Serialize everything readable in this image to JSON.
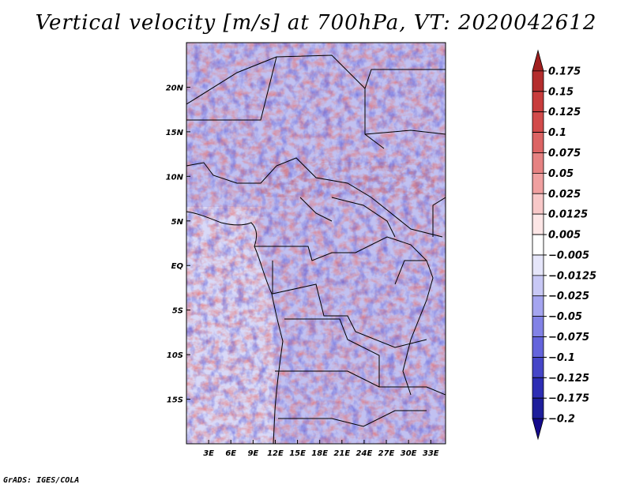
{
  "title": "Vertical velocity [m/s] at 700hPa, VT: 2020042612",
  "credit": "GrADS: IGES/COLA",
  "chart_data": {
    "type": "heatmap",
    "variable": "Vertical velocity",
    "units": "m/s",
    "level": "700hPa",
    "valid_time": "2020042612",
    "xlim": [
      0,
      35
    ],
    "ylim": [
      -20,
      25
    ],
    "x_ticks": [
      {
        "value": 3,
        "label": "3E"
      },
      {
        "value": 6,
        "label": "6E"
      },
      {
        "value": 9,
        "label": "9E"
      },
      {
        "value": 12,
        "label": "12E"
      },
      {
        "value": 15,
        "label": "15E"
      },
      {
        "value": 18,
        "label": "18E"
      },
      {
        "value": 21,
        "label": "21E"
      },
      {
        "value": 24,
        "label": "24E"
      },
      {
        "value": 27,
        "label": "27E"
      },
      {
        "value": 30,
        "label": "30E"
      },
      {
        "value": 33,
        "label": "33E"
      }
    ],
    "y_ticks": [
      {
        "value": 20,
        "label": "20N"
      },
      {
        "value": 15,
        "label": "15N"
      },
      {
        "value": 10,
        "label": "10N"
      },
      {
        "value": 5,
        "label": "5N"
      },
      {
        "value": 0,
        "label": "EQ"
      },
      {
        "value": -5,
        "label": "5S"
      },
      {
        "value": -10,
        "label": "10S"
      },
      {
        "value": -15,
        "label": "15S"
      }
    ],
    "colorbar": {
      "labels": [
        "0.175",
        "0.15",
        "0.125",
        "0.1",
        "0.075",
        "0.05",
        "0.025",
        "0.0125",
        "0.005",
        "−0.005",
        "−0.0125",
        "−0.025",
        "−0.05",
        "−0.075",
        "−0.1",
        "−0.125",
        "−0.175",
        "−0.2"
      ],
      "colors_top_to_bottom": [
        "#a01e1e",
        "#b42d2d",
        "#c83c3c",
        "#d24b4b",
        "#dc6464",
        "#e68282",
        "#f0a0a0",
        "#f8c8c8",
        "#fde6e6",
        "#ffffff",
        "#e6e6fa",
        "#c8c8f5",
        "#a5a5f0",
        "#8282e6",
        "#6464dc",
        "#4646c8",
        "#2d2db4",
        "#1e1e9b",
        "#140a8c"
      ]
    }
  }
}
